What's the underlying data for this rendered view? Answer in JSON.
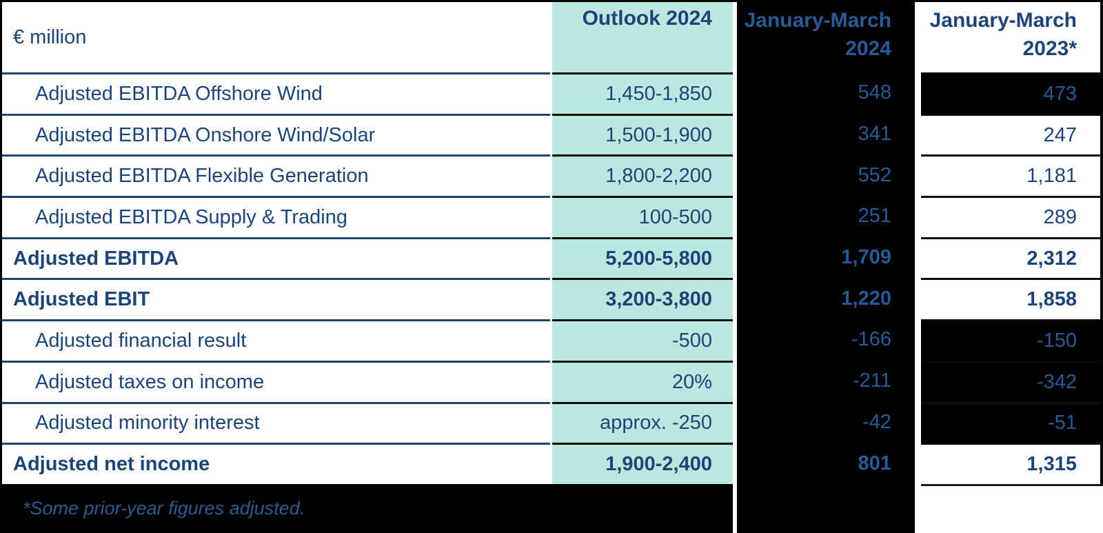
{
  "table": {
    "unit_label": "€ million",
    "columns": [
      {
        "label": "Outlook 2024"
      },
      {
        "label": "January-March 2024"
      },
      {
        "label": "January-March 2023*"
      }
    ],
    "rows": [
      {
        "label": "Adjusted EBITDA Offshore Wind",
        "outlook": "1,450-1,850",
        "jan_mar_2024": "548",
        "jan_mar_2023": "473"
      },
      {
        "label": "Adjusted EBITDA Onshore Wind/Solar",
        "outlook": "1,500-1,900",
        "jan_mar_2024": "341",
        "jan_mar_2023": "247"
      },
      {
        "label": "Adjusted EBITDA Flexible Generation",
        "outlook": "1,800-2,200",
        "jan_mar_2024": "552",
        "jan_mar_2023": "1,181"
      },
      {
        "label": "Adjusted EBITDA Supply & Trading",
        "outlook": "100-500",
        "jan_mar_2024": "251",
        "jan_mar_2023": "289"
      },
      {
        "label": "Adjusted EBITDA",
        "outlook": "5,200-5,800",
        "jan_mar_2024": "1,709",
        "jan_mar_2023": "2,312"
      },
      {
        "label": "Adjusted EBIT",
        "outlook": "3,200-3,800",
        "jan_mar_2024": "1,220",
        "jan_mar_2023": "1,858"
      },
      {
        "label": "Adjusted financial result",
        "outlook": "-500",
        "jan_mar_2024": "-166",
        "jan_mar_2023": "-150"
      },
      {
        "label": "Adjusted taxes on income",
        "outlook": "20%",
        "jan_mar_2024": "-211",
        "jan_mar_2023": "-342"
      },
      {
        "label": "Adjusted minority interest",
        "outlook": "approx. -250",
        "jan_mar_2024": "-42",
        "jan_mar_2023": "-51"
      },
      {
        "label": "Adjusted net income",
        "outlook": "1,900-2,400",
        "jan_mar_2024": "801",
        "jan_mar_2023": "1,315"
      }
    ],
    "footnote": "*Some prior-year figures adjusted."
  },
  "colors": {
    "navy_text": "#1d4477",
    "on_black_text": "#2a5a96",
    "teal_bg": "#b9e8e0",
    "black_bg": "#000000"
  }
}
